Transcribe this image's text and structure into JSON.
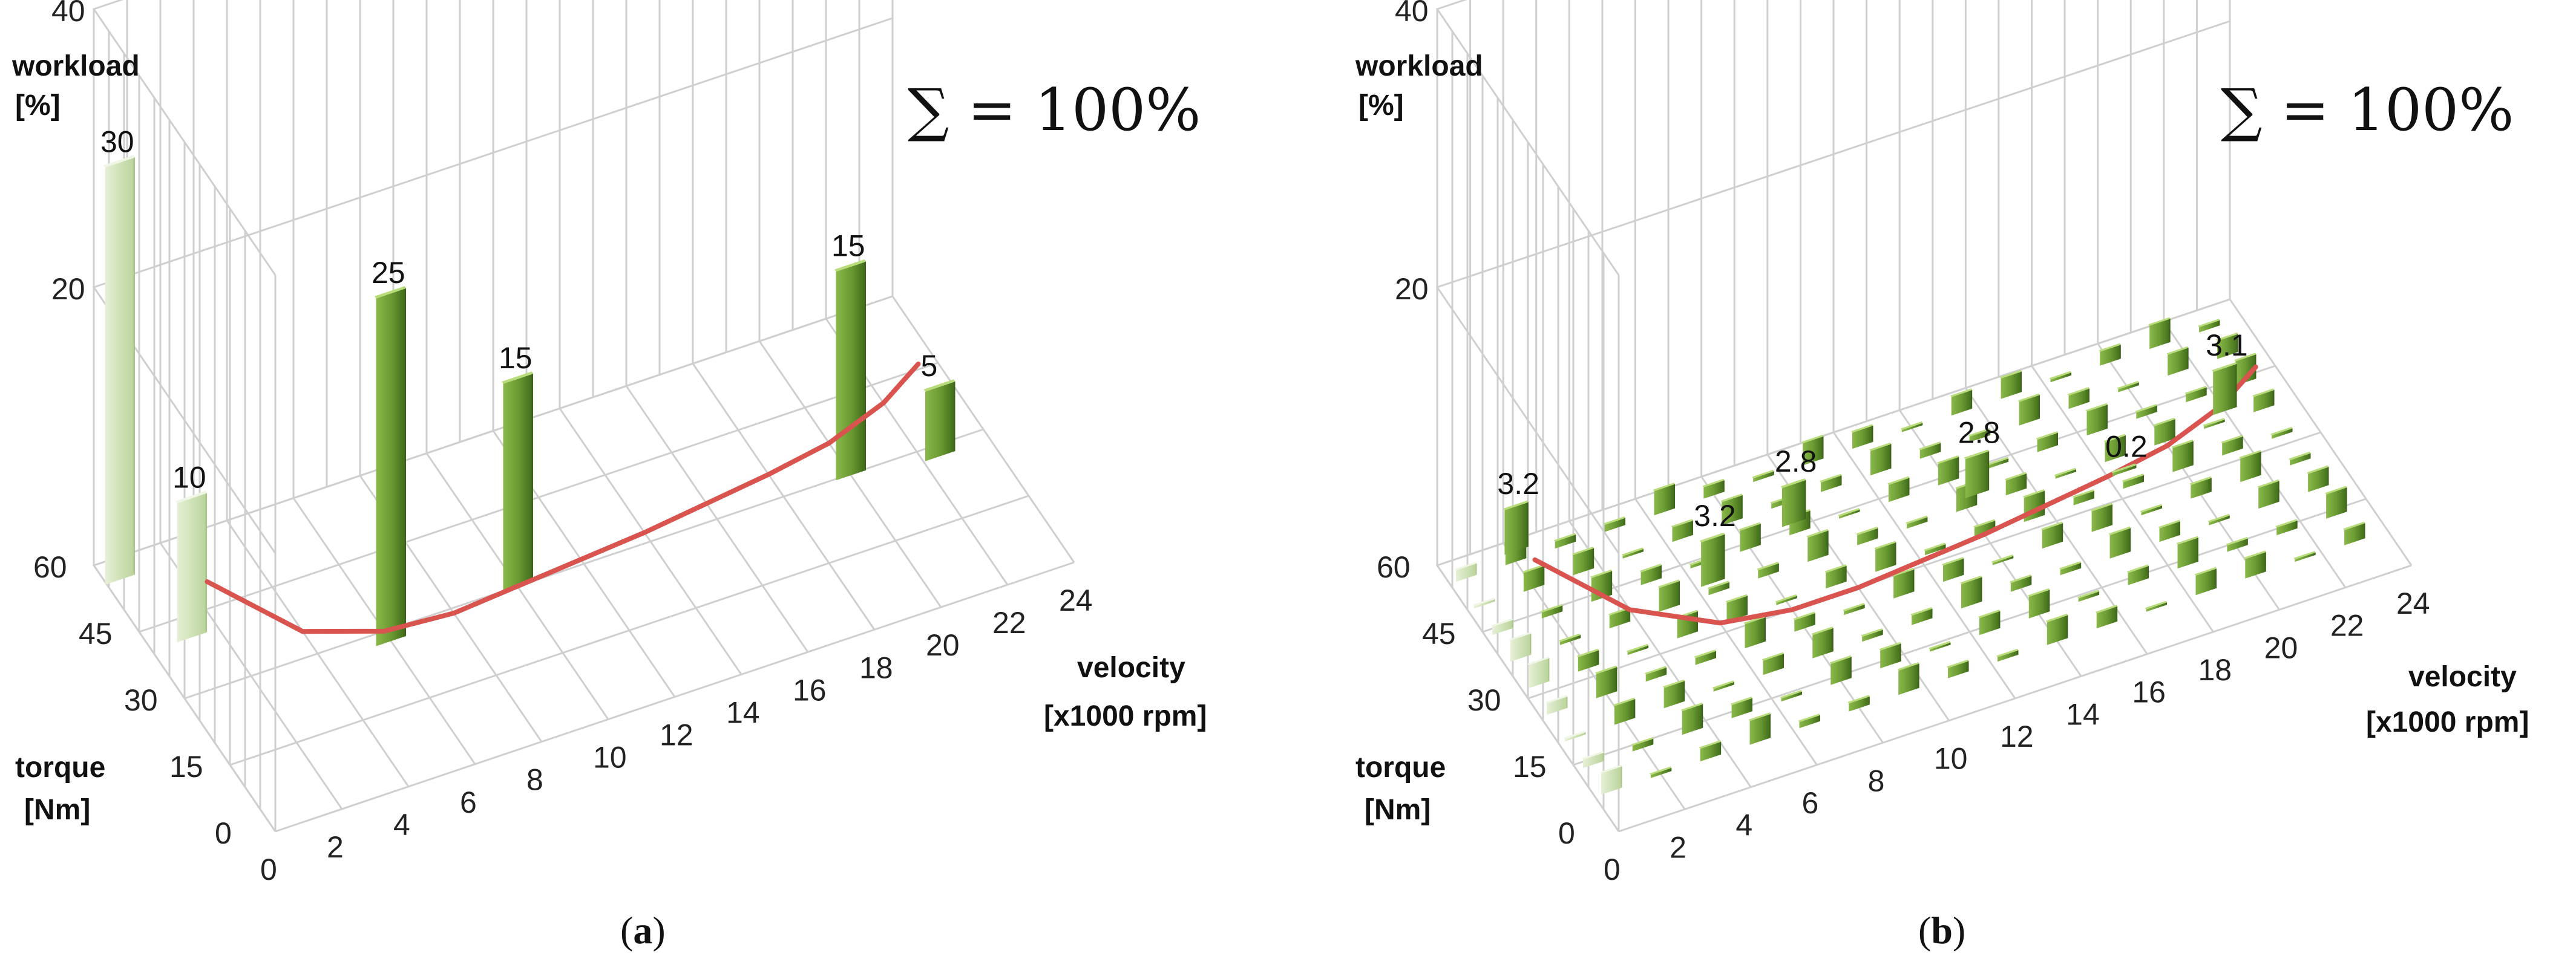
{
  "chart_data": [
    {
      "type": "bar3d",
      "panel": "a",
      "caption": "a",
      "annotation": "∑ = 100%",
      "zlabel": [
        "workload",
        "[%]"
      ],
      "xlabel": [
        "velocity",
        "[x1000 rpm]"
      ],
      "ylabel": [
        "torque",
        "[Nm]"
      ],
      "z_ticks": [
        "40",
        "20"
      ],
      "x_ticks": [
        "0",
        "2",
        "4",
        "6",
        "8",
        "10",
        "12",
        "14",
        "16",
        "18",
        "20",
        "22",
        "24"
      ],
      "y_ticks": [
        "0",
        "15",
        "30",
        "45",
        "60"
      ],
      "zlim": [
        0,
        40
      ],
      "xlim": [
        0,
        24
      ],
      "ylim": [
        0,
        60
      ],
      "bars": [
        {
          "velocity": 0.4,
          "torque": 56,
          "value": 30,
          "label": "30"
        },
        {
          "velocity": 1.2,
          "torque": 41,
          "value": 10,
          "label": "10"
        },
        {
          "velocity": 6,
          "torque": 28,
          "value": 25,
          "label": "25"
        },
        {
          "velocity": 10,
          "torque": 30,
          "value": 15,
          "label": "15"
        },
        {
          "velocity": 20,
          "torque": 30,
          "value": 15,
          "label": "15"
        },
        {
          "velocity": 22.5,
          "torque": 28,
          "value": 5,
          "label": "5"
        }
      ],
      "curve": [
        [
          2.5,
          50
        ],
        [
          4,
          35
        ],
        [
          6,
          30
        ],
        [
          8,
          29
        ],
        [
          10,
          30
        ],
        [
          12,
          31
        ],
        [
          14,
          32
        ],
        [
          16,
          33.5
        ],
        [
          18,
          35
        ],
        [
          20,
          37
        ],
        [
          22,
          41
        ],
        [
          23.5,
          46
        ]
      ]
    },
    {
      "type": "bar3d",
      "panel": "b",
      "caption": "b",
      "annotation": "∑ = 100%",
      "zlabel": [
        "workload",
        "[%]"
      ],
      "xlabel": [
        "velocity",
        "[x1000 rpm]"
      ],
      "ylabel": [
        "torque",
        "[Nm]"
      ],
      "z_ticks": [
        "40",
        "20"
      ],
      "x_ticks": [
        "0",
        "2",
        "4",
        "6",
        "8",
        "10",
        "12",
        "14",
        "16",
        "18",
        "20",
        "22",
        "24"
      ],
      "y_ticks": [
        "0",
        "15",
        "30",
        "45",
        "60"
      ],
      "zlim": [
        0,
        40
      ],
      "xlim": [
        0,
        24
      ],
      "ylim": [
        0,
        60
      ],
      "labels": [
        {
          "velocity": 2.2,
          "torque": 58,
          "value": 3.2,
          "label": "3.2"
        },
        {
          "velocity": 6.5,
          "torque": 40,
          "value": 3.2,
          "label": "3.2"
        },
        {
          "velocity": 9.5,
          "torque": 46,
          "value": 2.8,
          "label": "2.8"
        },
        {
          "velocity": 14.5,
          "torque": 40,
          "value": 2.8,
          "label": "2.8"
        },
        {
          "velocity": 18.5,
          "torque": 35,
          "value": 0.2,
          "label": "0.2"
        },
        {
          "velocity": 22,
          "torque": 40,
          "value": 3.1,
          "label": "3.1"
        }
      ],
      "curve": [
        [
          2.5,
          55
        ],
        [
          4,
          40
        ],
        [
          6,
          32
        ],
        [
          8,
          30
        ],
        [
          10,
          30
        ],
        [
          12,
          31
        ],
        [
          14,
          32
        ],
        [
          16,
          33.5
        ],
        [
          18,
          35
        ],
        [
          20,
          37
        ],
        [
          22,
          41
        ],
        [
          23.5,
          46
        ]
      ]
    }
  ]
}
